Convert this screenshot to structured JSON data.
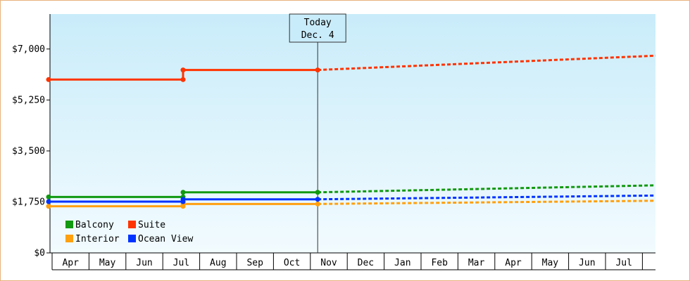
{
  "chart_data": {
    "type": "line",
    "title": "",
    "xlabel": "",
    "ylabel": "",
    "ylim": [
      0,
      8200
    ],
    "y_ticks": [
      {
        "value": 0,
        "label": "$0"
      },
      {
        "value": 1750,
        "label": "$1,750"
      },
      {
        "value": 3500,
        "label": "$3,500"
      },
      {
        "value": 5250,
        "label": "$5,250"
      },
      {
        "value": 7000,
        "label": "$7,000"
      }
    ],
    "months": [
      "Apr",
      "May",
      "Jun",
      "Jul",
      "Aug",
      "Sep",
      "Oct",
      "Nov",
      "Dec",
      "Jan",
      "Feb",
      "Mar",
      "Apr",
      "May",
      "Jun",
      "Jul"
    ],
    "today_marker": {
      "line1": "Today",
      "line2": "Dec. 4",
      "index": 8
    },
    "legend": {
      "placement": "bottom-left"
    },
    "grid": false,
    "series": [
      {
        "name": "Balcony",
        "color": "#119911",
        "historical": [
          [
            0,
            1920
          ],
          [
            3,
            1920
          ],
          [
            3,
            2080
          ],
          [
            8,
            2080
          ]
        ],
        "forecast": [
          [
            8,
            2080
          ],
          [
            16.2,
            2320
          ]
        ]
      },
      {
        "name": "Suite",
        "color": "#ff3300",
        "historical": [
          [
            0,
            5950
          ],
          [
            3,
            5950
          ],
          [
            3,
            6280
          ],
          [
            8,
            6280
          ]
        ],
        "forecast": [
          [
            8,
            6280
          ],
          [
            16.2,
            6770
          ]
        ]
      },
      {
        "name": "Interior",
        "color": "#ffa010",
        "historical": [
          [
            0,
            1600
          ],
          [
            3,
            1600
          ],
          [
            3,
            1680
          ],
          [
            8,
            1680
          ]
        ],
        "forecast": [
          [
            8,
            1680
          ],
          [
            16.2,
            1790
          ]
        ]
      },
      {
        "name": "Ocean View",
        "color": "#0033ff",
        "historical": [
          [
            0,
            1760
          ],
          [
            3,
            1760
          ],
          [
            3,
            1840
          ],
          [
            8,
            1840
          ]
        ],
        "forecast": [
          [
            8,
            1840
          ],
          [
            16.2,
            1970
          ]
        ]
      }
    ]
  }
}
